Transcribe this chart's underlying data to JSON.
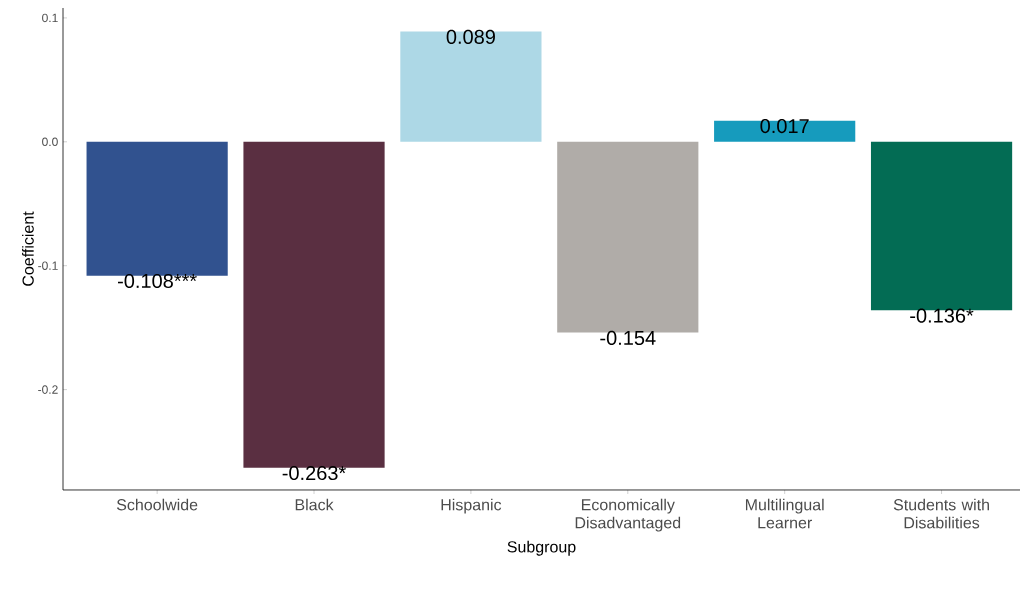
{
  "chart_data": {
    "type": "bar",
    "xlabel": "Subgroup",
    "ylabel": "Coefficient",
    "categories": [
      "Schoolwide",
      "Black",
      "Hispanic",
      "Economically Disadvantaged",
      "Multilingual Learner",
      "Students with Disabilities"
    ],
    "values": [
      -0.108,
      -0.263,
      0.089,
      -0.154,
      0.017,
      -0.136
    ],
    "value_labels": [
      "-0.108***",
      "-0.263*",
      "0.089",
      "-0.154",
      "0.017",
      "-0.136*"
    ],
    "colors": [
      "#31528f",
      "#5a2f41",
      "#add8e6",
      "#b0aca8",
      "#169bbd",
      "#036c54"
    ],
    "ylim": [
      -0.281,
      0.108
    ],
    "yticks": [
      -0.2,
      -0.1,
      {
        "value": 0.0,
        "label": "0.0"
      },
      0.1
    ],
    "grid": false
  }
}
